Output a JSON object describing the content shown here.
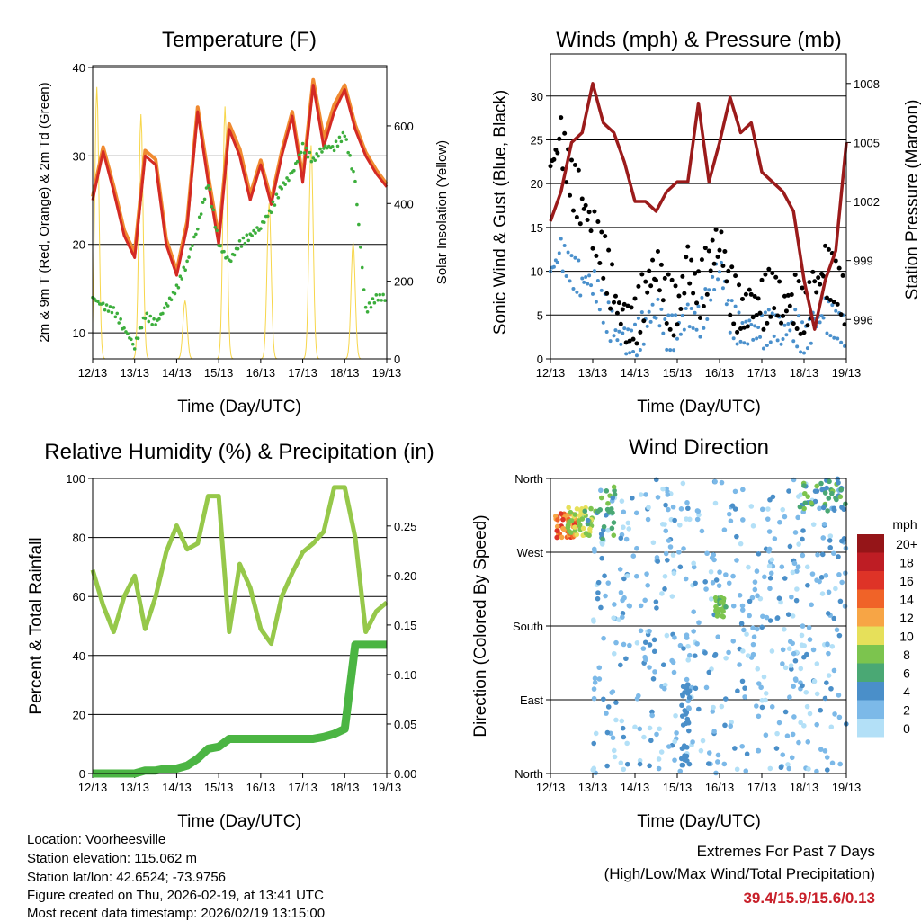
{
  "colors": {
    "temp_2m": "#d42a24",
    "temp_9m": "#f08a30",
    "dewpoint": "#3cae3c",
    "solar": "#f7d64a",
    "gust": "#000000",
    "wind": "#4a90cc",
    "pressure": "#9b1b1b",
    "rh": "#96c84a",
    "precip": "#4bb543"
  },
  "time_labels": [
    "12/13",
    "13/13",
    "14/13",
    "15/13",
    "16/13",
    "17/13",
    "18/13",
    "19/13"
  ],
  "chart_data": [
    {
      "type": "line",
      "title": "Temperature (F)",
      "xlabel": "Time (Day/UTC)",
      "ylabel": "2m & 9m T (Red, Orange) & 2m Td (Green)",
      "y2label": "Solar Insolation (Yellow)",
      "xlim": [
        0,
        7
      ],
      "ylim": [
        7.06,
        40.2
      ],
      "y2lim": [
        0,
        755
      ],
      "yticks": [
        10,
        20,
        30,
        40
      ],
      "y2ticks": [
        0,
        200,
        400,
        600
      ],
      "t": [
        0,
        0.25,
        0.5,
        0.75,
        1,
        1.25,
        1.5,
        1.75,
        2,
        2.25,
        2.5,
        2.75,
        3,
        3.25,
        3.5,
        3.75,
        4,
        4.25,
        4.5,
        4.75,
        5,
        5.25,
        5.5,
        5.75,
        6,
        6.25,
        6.5,
        6.75,
        7
      ],
      "series": [
        {
          "name": "2m T",
          "values": [
            25,
            30.5,
            26,
            21,
            18.5,
            30,
            29,
            20,
            16.5,
            22,
            35,
            27,
            20,
            33,
            30,
            25,
            29,
            24.5,
            30,
            34.5,
            27,
            38,
            31,
            35,
            37.5,
            33,
            30,
            28,
            26.5
          ]
        },
        {
          "name": "9m T",
          "values": [
            25.4,
            31,
            26.6,
            21.6,
            19,
            30.6,
            29.6,
            20.6,
            17,
            22.6,
            35.5,
            27.8,
            20.8,
            33.6,
            30.8,
            25.6,
            29.5,
            25,
            30.5,
            35,
            27.6,
            38.6,
            32,
            35.8,
            38,
            33.5,
            30.4,
            28.4,
            26.8
          ]
        },
        {
          "name": "2m Td",
          "values": [
            14,
            13,
            12.5,
            10.5,
            8.5,
            12,
            11,
            13,
            15,
            18,
            22,
            27,
            20,
            18,
            20,
            21,
            22,
            24,
            26.5,
            28,
            31,
            29.5,
            31,
            31,
            32.5,
            27,
            12.5,
            14,
            14
          ]
        }
      ],
      "solar_daily_peaks": [
        {
          "t": 0.1,
          "value": 700
        },
        {
          "t": 1.15,
          "value": 630
        },
        {
          "t": 2.2,
          "value": 150
        },
        {
          "t": 3.15,
          "value": 650
        },
        {
          "t": 4.2,
          "value": 400
        },
        {
          "t": 5.2,
          "value": 550
        },
        {
          "t": 6.2,
          "value": 300
        }
      ]
    },
    {
      "type": "line",
      "title": "Winds (mph) & Pressure (mb)",
      "xlabel": "Time (Day/UTC)",
      "ylabel": "Sonic Wind & Gust (Blue, Black)",
      "y2label": "Station Pressure (Maroon)",
      "xlim": [
        0,
        7
      ],
      "ylim": [
        0,
        34.8
      ],
      "y2lim": [
        994,
        1009.5
      ],
      "yticks": [
        0,
        5,
        10,
        15,
        20,
        25,
        30
      ],
      "y2ticks": [
        996,
        999,
        1002,
        1005,
        1008
      ],
      "t": [
        0,
        0.25,
        0.5,
        0.75,
        1,
        1.25,
        1.5,
        1.75,
        2,
        2.25,
        2.5,
        2.75,
        3,
        3.25,
        3.5,
        3.75,
        4,
        4.25,
        4.5,
        4.75,
        5,
        5.25,
        5.5,
        5.75,
        6,
        6.25,
        6.5,
        6.75,
        7
      ],
      "series": [
        {
          "name": "Gust",
          "values": [
            22,
            25,
            20,
            18,
            15,
            12,
            7,
            4,
            4,
            8,
            11,
            7,
            5,
            11,
            7,
            11,
            14,
            8,
            5,
            6,
            6,
            8,
            6,
            7,
            5,
            8,
            10,
            9,
            6
          ]
        },
        {
          "name": "Sonic Wind",
          "values": [
            10,
            12,
            10,
            9,
            9,
            6,
            3,
            2,
            2,
            4,
            6,
            3,
            3,
            5,
            4,
            7,
            11,
            5,
            3,
            3,
            3,
            4,
            3,
            4,
            2,
            4,
            5,
            4,
            3
          ]
        },
        {
          "name": "Pressure",
          "values": [
            1001,
            1002.5,
            1005,
            1005.5,
            1008,
            1006,
            1005.5,
            1004,
            1002,
            1002,
            1001.5,
            1002.5,
            1003,
            1003,
            1007,
            1003,
            1005,
            1007.3,
            1005.5,
            1006,
            1003.5,
            1003,
            1002.5,
            1001.5,
            998,
            995.5,
            998,
            999.5,
            1005
          ]
        }
      ]
    },
    {
      "type": "line",
      "title": "Relative Humidity (%) & Precipitation (in)",
      "xlabel": "Time (Day/UTC)",
      "ylabel": "Percent & Total Rainfall",
      "xlim": [
        0,
        7
      ],
      "ylim": [
        0,
        100
      ],
      "y2lim": [
        0,
        0.298
      ],
      "yticks": [
        0,
        20,
        40,
        60,
        80,
        100
      ],
      "y2ticks": [
        "0.00",
        "0.05",
        "0.10",
        "0.15",
        "0.20",
        "0.25"
      ],
      "t": [
        0,
        0.25,
        0.5,
        0.75,
        1,
        1.25,
        1.5,
        1.75,
        2,
        2.25,
        2.5,
        2.75,
        3,
        3.25,
        3.5,
        3.75,
        4,
        4.25,
        4.5,
        4.75,
        5,
        5.25,
        5.5,
        5.75,
        6,
        6.25,
        6.5,
        6.75,
        7
      ],
      "series": [
        {
          "name": "RH",
          "values": [
            69,
            57,
            48,
            60,
            67,
            49,
            60,
            75,
            84,
            76,
            78,
            94,
            94,
            48,
            71,
            63,
            49,
            44,
            60,
            68,
            75,
            78,
            82,
            97,
            97,
            80,
            48,
            55,
            58
          ]
        },
        {
          "name": "Precip",
          "values": [
            0,
            0,
            0,
            0,
            0,
            0.003,
            0.003,
            0.005,
            0.005,
            0.008,
            0.015,
            0.025,
            0.027,
            0.035,
            0.035,
            0.035,
            0.035,
            0.035,
            0.035,
            0.035,
            0.035,
            0.035,
            0.037,
            0.04,
            0.045,
            0.13,
            0.13,
            0.13,
            0.13
          ]
        }
      ]
    },
    {
      "type": "scatter",
      "title": "Wind Direction",
      "xlabel": "Time (Day/UTC)",
      "ylabel": "Direction (Colored By Speed)",
      "xlim": [
        0,
        7
      ],
      "ylim": [
        0,
        360
      ],
      "ytick_labels": [
        {
          "value": 360,
          "label": "North"
        },
        {
          "value": 270,
          "label": "West"
        },
        {
          "value": 180,
          "label": "South"
        },
        {
          "value": 90,
          "label": "East"
        },
        {
          "value": 0,
          "label": "North"
        }
      ],
      "clusters": [
        {
          "t": [
            1,
            7
          ],
          "dir": [
            0,
            360
          ],
          "speed": [
            0,
            4
          ],
          "n": 520
        },
        {
          "t": [
            0.1,
            0.6
          ],
          "dir": [
            288,
            318
          ],
          "speed": [
            11,
            16
          ],
          "n": 45
        },
        {
          "t": [
            0.4,
            1.0
          ],
          "dir": [
            290,
            325
          ],
          "speed": [
            7,
            11
          ],
          "n": 40
        },
        {
          "t": [
            0.8,
            1.6
          ],
          "dir": [
            285,
            355
          ],
          "speed": [
            4,
            8
          ],
          "n": 30
        },
        {
          "t": [
            5.9,
            7
          ],
          "dir": [
            320,
            360
          ],
          "speed": [
            3,
            8
          ],
          "n": 45
        },
        {
          "t": [
            3.9,
            4.15
          ],
          "dir": [
            190,
            215
          ],
          "speed": [
            6,
            9
          ],
          "n": 25
        },
        {
          "t": [
            3.1,
            3.3
          ],
          "dir": [
            10,
            110
          ],
          "speed": [
            3,
            5
          ],
          "n": 35
        }
      ],
      "legend": {
        "title": "mph",
        "labels": [
          "20+",
          "18",
          "16",
          "14",
          "12",
          "10",
          "8",
          "6",
          "4",
          "2",
          "0"
        ],
        "colors": [
          "#951518",
          "#be1d24",
          "#de3327",
          "#f06328",
          "#f7a545",
          "#e6e05a",
          "#7cc44e",
          "#4aa874",
          "#4a8fc9",
          "#7cb9e8",
          "#b3e0f7"
        ]
      }
    }
  ],
  "info": {
    "location": "Location: Voorheesville",
    "elevation": "Station elevation: 115.062 m",
    "latlon": "Station lat/lon: 42.6524; -73.9756",
    "created": "Figure created on Thu, 2026-02-19, at 13:41 UTC",
    "recent": "Most recent data timestamp: 2026/02/19 13:15:00"
  },
  "extremes": {
    "title": "Extremes For Past 7 Days",
    "subtitle": "(High/Low/Max Wind/Total Precipitation)",
    "values": "39.4/15.9/15.6/0.13"
  }
}
